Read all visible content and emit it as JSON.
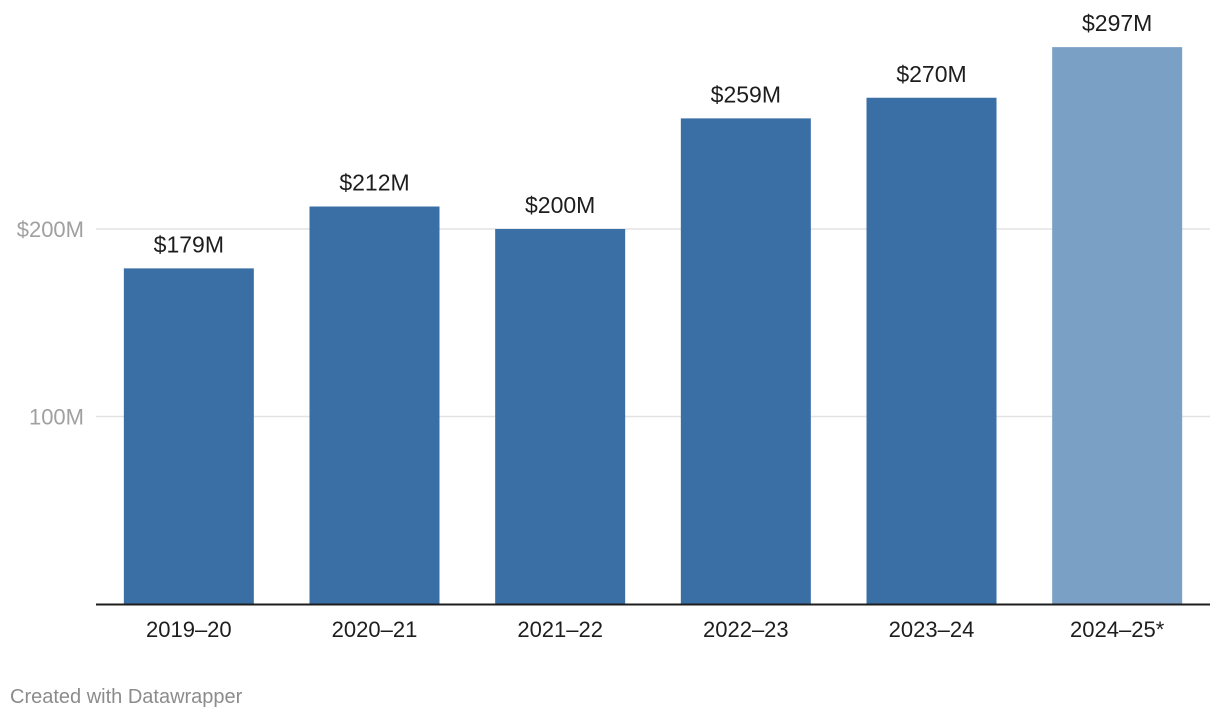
{
  "chart_data": {
    "type": "bar",
    "categories": [
      "2019–20",
      "2020–21",
      "2021–22",
      "2022–23",
      "2023–24",
      "2024–25*"
    ],
    "values": [
      179,
      212,
      200,
      259,
      270,
      297
    ],
    "data_labels": [
      "$179M",
      "$212M",
      "$200M",
      "$259M",
      "$270M",
      "$297M"
    ],
    "unit": "M",
    "ylim": [
      0,
      300
    ],
    "yticks": [
      {
        "value": 100,
        "label": "100M"
      },
      {
        "value": 200,
        "label": "$200M"
      }
    ],
    "grid": true,
    "colors": {
      "bar": "#3a6fa5",
      "bar_highlight": "#7ba0c5",
      "grid": "#e3e3e3",
      "axis": "#1d1d1d"
    },
    "highlight_index": 5
  },
  "footer": {
    "credit": "Created with Datawrapper"
  }
}
